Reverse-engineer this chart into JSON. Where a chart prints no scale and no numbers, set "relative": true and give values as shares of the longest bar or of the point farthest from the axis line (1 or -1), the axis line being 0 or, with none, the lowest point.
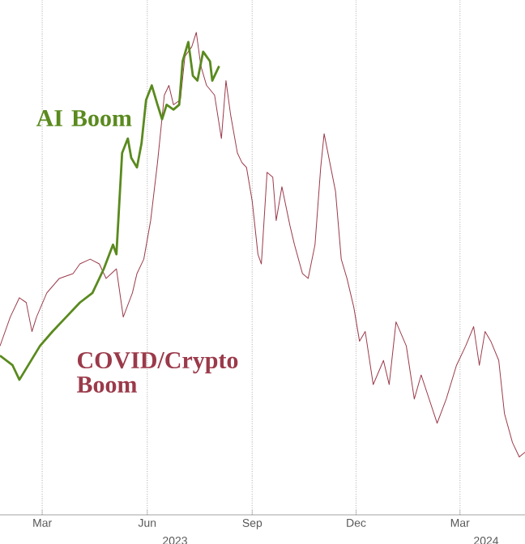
{
  "chart_data": {
    "type": "line",
    "relative": true,
    "grid": true,
    "marker": "none",
    "line_style": "solid",
    "xlim": [
      "2023-02-06",
      "2024-05-11"
    ],
    "xticks": [
      {
        "value": "2023-03-15",
        "label": "Mar"
      },
      {
        "value": "2023-06-15",
        "label": "Jun"
      },
      {
        "value": "2023-09-15",
        "label": "Sep"
      },
      {
        "value": "2023-12-15",
        "label": "Dec"
      },
      {
        "value": "2024-03-15",
        "label": "Mar"
      }
    ],
    "annotations": [
      "2023",
      "2024"
    ],
    "series": [
      {
        "name": "COVID/Crypto Boom",
        "color": "#9b3a4a",
        "x": [
          "2023-02-06",
          "2023-02-15",
          "2023-02-23",
          "2023-03-01",
          "2023-03-06",
          "2023-03-10",
          "2023-03-19",
          "2023-03-30",
          "2023-04-11",
          "2023-04-17",
          "2023-04-26",
          "2023-05-04",
          "2023-05-10",
          "2023-05-19",
          "2023-05-25",
          "2023-06-02",
          "2023-06-06",
          "2023-06-12",
          "2023-06-18",
          "2023-06-24",
          "2023-06-27",
          "2023-06-30",
          "2023-07-04",
          "2023-07-08",
          "2023-07-14",
          "2023-07-18",
          "2023-07-24",
          "2023-07-28",
          "2023-08-01",
          "2023-08-06",
          "2023-08-13",
          "2023-08-19",
          "2023-08-23",
          "2023-08-27",
          "2023-09-02",
          "2023-09-06",
          "2023-09-10",
          "2023-09-15",
          "2023-09-20",
          "2023-09-23",
          "2023-09-28",
          "2023-10-03",
          "2023-10-06",
          "2023-10-11",
          "2023-10-18",
          "2023-10-22",
          "2023-10-29",
          "2023-11-03",
          "2023-11-09",
          "2023-11-14",
          "2023-11-17",
          "2023-11-22",
          "2023-11-27",
          "2023-12-02",
          "2023-12-07",
          "2023-12-13",
          "2023-12-18",
          "2023-12-23",
          "2023-12-30",
          "2024-01-08",
          "2024-01-13",
          "2024-01-19",
          "2024-01-28",
          "2024-02-04",
          "2024-02-10",
          "2024-02-17",
          "2024-02-24",
          "2024-03-03",
          "2024-03-12",
          "2024-03-20",
          "2024-03-27",
          "2024-04-01",
          "2024-04-06",
          "2024-04-11",
          "2024-04-18",
          "2024-04-23",
          "2024-04-30",
          "2024-05-06",
          "2024-05-11"
        ],
        "values": [
          0.35,
          0.41,
          0.45,
          0.44,
          0.38,
          0.41,
          0.46,
          0.49,
          0.5,
          0.52,
          0.53,
          0.52,
          0.49,
          0.51,
          0.41,
          0.46,
          0.5,
          0.53,
          0.61,
          0.73,
          0.8,
          0.87,
          0.89,
          0.85,
          0.86,
          0.95,
          0.97,
          1,
          0.93,
          0.89,
          0.87,
          0.78,
          0.9,
          0.83,
          0.75,
          0.73,
          0.72,
          0.65,
          0.54,
          0.52,
          0.71,
          0.7,
          0.61,
          0.68,
          0.6,
          0.56,
          0.5,
          0.49,
          0.56,
          0.72,
          0.79,
          0.73,
          0.67,
          0.53,
          0.49,
          0.43,
          0.36,
          0.38,
          0.27,
          0.32,
          0.27,
          0.4,
          0.35,
          0.24,
          0.29,
          0.24,
          0.19,
          0.24,
          0.31,
          0.35,
          0.39,
          0.31,
          0.38,
          0.36,
          0.32,
          0.21,
          0.15,
          0.12,
          0.13
        ]
      },
      {
        "name": "AI Boom",
        "color": "#5a8a1e",
        "x": [
          "2023-02-06",
          "2023-02-17",
          "2023-02-23",
          "2023-03-13",
          "2023-03-24",
          "2023-04-05",
          "2023-04-17",
          "2023-04-28",
          "2023-05-08",
          "2023-05-16",
          "2023-05-19",
          "2023-05-24",
          "2023-05-29",
          "2023-06-01",
          "2023-06-06",
          "2023-06-10",
          "2023-06-14",
          "2023-06-19",
          "2023-06-24",
          "2023-06-28",
          "2023-07-02",
          "2023-07-08",
          "2023-07-13",
          "2023-07-16",
          "2023-07-21",
          "2023-07-25",
          "2023-07-29",
          "2023-08-03",
          "2023-08-09",
          "2023-08-11",
          "2023-08-17"
        ],
        "values": [
          0.33,
          0.31,
          0.28,
          0.35,
          0.38,
          0.41,
          0.44,
          0.46,
          0.51,
          0.56,
          0.54,
          0.75,
          0.78,
          0.74,
          0.72,
          0.77,
          0.86,
          0.89,
          0.85,
          0.82,
          0.85,
          0.84,
          0.85,
          0.94,
          0.98,
          0.91,
          0.9,
          0.96,
          0.94,
          0.9,
          0.93
        ]
      }
    ]
  }
}
